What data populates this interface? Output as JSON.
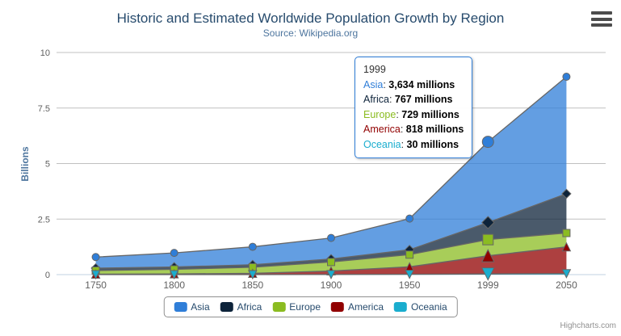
{
  "chart_data": {
    "type": "area",
    "stacking": "normal",
    "title": "Historic and Estimated Worldwide Population Growth by Region",
    "subtitle": "Source: Wikipedia.org",
    "xlabel": "",
    "ylabel": "Billions",
    "categories": [
      "1750",
      "1800",
      "1850",
      "1900",
      "1950",
      "1999",
      "2050"
    ],
    "unit": "millions",
    "y_unit_divisor": 1000,
    "ylim": [
      0,
      10
    ],
    "yticks": [
      "0",
      "2.5",
      "5",
      "7.5",
      "10"
    ],
    "ytick_values": [
      0,
      2.5,
      5,
      7.5,
      10
    ],
    "grid": true,
    "legend_position": "bottom",
    "hover_category_index": 5,
    "series": [
      {
        "name": "Asia",
        "color": "#2f7ed8",
        "marker": "circle",
        "values": [
          502,
          635,
          809,
          947,
          1402,
          3634,
          5268
        ]
      },
      {
        "name": "Africa",
        "color": "#0d233a",
        "marker": "diamond",
        "values": [
          106,
          107,
          111,
          133,
          221,
          767,
          1766
        ]
      },
      {
        "name": "Europe",
        "color": "#8bbc21",
        "marker": "square",
        "values": [
          163,
          203,
          276,
          408,
          547,
          729,
          628
        ]
      },
      {
        "name": "America",
        "color": "#910000",
        "marker": "triangle",
        "values": [
          18,
          31,
          54,
          156,
          339,
          818,
          1201
        ]
      },
      {
        "name": "Oceania",
        "color": "#1aadce",
        "marker": "triangle-down",
        "values": [
          2,
          2,
          2,
          6,
          13,
          30,
          46
        ]
      }
    ],
    "style": {
      "line_color": "#666666",
      "fill_opacity": 0.75,
      "grid_color": "#C0C0C0",
      "axis_line_color": "#C0D0E0",
      "axis_label_color": "#606060",
      "title_color": "#274b6d",
      "subtitle_color": "#4d759e",
      "y_title_color": "#4d759e",
      "legend_text_color": "#274b6d",
      "legend_border_color": "#909090",
      "tooltip_border_color": "#2f7ed8",
      "credits_color": "#909090"
    }
  },
  "tooltip": {
    "header": "1999",
    "rows": [
      {
        "label": "Asia",
        "value": "3,634 millions"
      },
      {
        "label": "Africa",
        "value": "767 millions"
      },
      {
        "label": "Europe",
        "value": "729 millions"
      },
      {
        "label": "America",
        "value": "818 millions"
      },
      {
        "label": "Oceania",
        "value": "30 millions"
      }
    ]
  },
  "icons": {
    "context_menu": "hamburger-icon"
  },
  "credits": "Highcharts.com"
}
